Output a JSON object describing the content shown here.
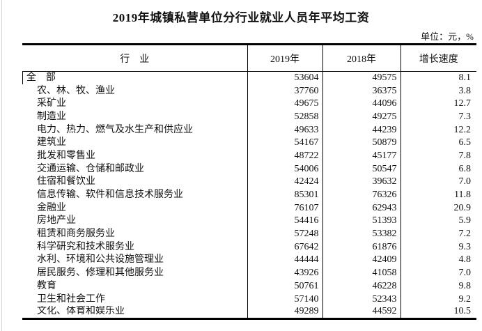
{
  "page": {
    "title": "2019年城镇私营单位分行业就业人员年平均工资",
    "unit_label": "单位：元，%"
  },
  "table": {
    "columns": [
      "行　业",
      "2019年",
      "2018年",
      "增长速度"
    ],
    "rows": [
      {
        "name": "全　部",
        "indent": 0,
        "y2019": "53604",
        "y2018": "49575",
        "growth": "8.1"
      },
      {
        "name": "农、林、牧、渔业",
        "indent": 1,
        "y2019": "37760",
        "y2018": "36375",
        "growth": "3.8"
      },
      {
        "name": "采矿业",
        "indent": 1,
        "y2019": "49675",
        "y2018": "44096",
        "growth": "12.7"
      },
      {
        "name": "制造业",
        "indent": 1,
        "y2019": "52858",
        "y2018": "49275",
        "growth": "7.3"
      },
      {
        "name": "电力、热力、燃气及水生产和供应业",
        "indent": 1,
        "y2019": "49633",
        "y2018": "44239",
        "growth": "12.2"
      },
      {
        "name": "建筑业",
        "indent": 1,
        "y2019": "54167",
        "y2018": "50879",
        "growth": "6.5"
      },
      {
        "name": "批发和零售业",
        "indent": 1,
        "y2019": "48722",
        "y2018": "45177",
        "growth": "7.8"
      },
      {
        "name": "交通运输、仓储和邮政业",
        "indent": 1,
        "y2019": "54006",
        "y2018": "50547",
        "growth": "6.8"
      },
      {
        "name": "住宿和餐饮业",
        "indent": 1,
        "y2019": "42424",
        "y2018": "39632",
        "growth": "7.0"
      },
      {
        "name": "信息传输、软件和信息技术服务业",
        "indent": 1,
        "y2019": "85301",
        "y2018": "76326",
        "growth": "11.8"
      },
      {
        "name": "金融业",
        "indent": 1,
        "y2019": "76107",
        "y2018": "62943",
        "growth": "20.9"
      },
      {
        "name": "房地产业",
        "indent": 1,
        "y2019": "54416",
        "y2018": "51393",
        "growth": "5.9"
      },
      {
        "name": "租赁和商务服务业",
        "indent": 1,
        "y2019": "57248",
        "y2018": "53382",
        "growth": "7.2"
      },
      {
        "name": "科学研究和技术服务业",
        "indent": 1,
        "y2019": "67642",
        "y2018": "61876",
        "growth": "9.3"
      },
      {
        "name": "水利、环境和公共设施管理业",
        "indent": 1,
        "y2019": "44444",
        "y2018": "42409",
        "growth": "4.8"
      },
      {
        "name": "居民服务、修理和其他服务业",
        "indent": 1,
        "y2019": "43926",
        "y2018": "41058",
        "growth": "7.0"
      },
      {
        "name": "教育",
        "indent": 1,
        "y2019": "50761",
        "y2018": "46228",
        "growth": "9.8"
      },
      {
        "name": "卫生和社会工作",
        "indent": 1,
        "y2019": "57140",
        "y2018": "52343",
        "growth": "9.2"
      },
      {
        "name": "文化、体育和娱乐业",
        "indent": 1,
        "y2019": "49289",
        "y2018": "44592",
        "growth": "10.5"
      }
    ]
  }
}
